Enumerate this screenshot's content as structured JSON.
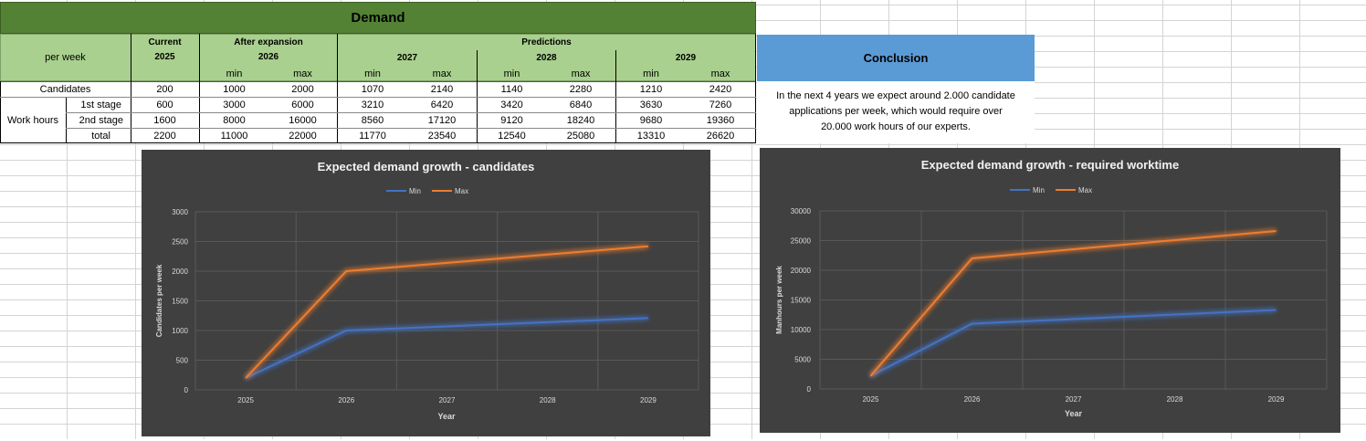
{
  "sheet": {
    "title": "Demand",
    "header": {
      "per_week": "per week",
      "current_label": "Current",
      "current_year": "2025",
      "expansion_label": "After expansion",
      "expansion_year": "2026",
      "predictions_label": "Predictions",
      "years": [
        "2027",
        "2028",
        "2029"
      ],
      "min": "min",
      "max": "max"
    },
    "rows": {
      "candidates_label": "Candidates",
      "work_hours_label": "Work hours",
      "stage1_label": "1st stage",
      "stage2_label": "2nd stage",
      "total_label": "total",
      "candidates": [
        "200",
        "1000",
        "2000",
        "1070",
        "2140",
        "1140",
        "2280",
        "1210",
        "2420"
      ],
      "stage1": [
        "600",
        "3000",
        "6000",
        "3210",
        "6420",
        "3420",
        "6840",
        "3630",
        "7260"
      ],
      "stage2": [
        "1600",
        "8000",
        "16000",
        "8560",
        "17120",
        "9120",
        "18240",
        "9680",
        "19360"
      ],
      "total": [
        "2200",
        "11000",
        "22000",
        "11770",
        "23540",
        "12540",
        "25080",
        "13310",
        "26620"
      ]
    }
  },
  "conclusion": {
    "title": "Conclusion",
    "line1": "In the next 4 years we expect around 2.000 candidate",
    "line2": "applications per week, which would require over",
    "line3": "20.000 work hours of our experts."
  },
  "chart_data": [
    {
      "type": "line",
      "title": "Expected demand growth - candidates",
      "xlabel": "",
      "ylabel": "Candidates per week",
      "x": [
        "2025",
        "2026",
        "2027",
        "2028",
        "2029"
      ],
      "ylim": [
        0,
        3000
      ],
      "yticks": [
        0,
        500,
        1000,
        1500,
        2000,
        2500,
        3000
      ],
      "ytick_labels": [
        "0",
        "500",
        "1000",
        "1500",
        "2000",
        "2500",
        "3000"
      ],
      "legend": "top",
      "grid": true,
      "series": [
        {
          "name": "Min",
          "color": "#4472c4",
          "values": [
            200,
            1000,
            1070,
            1140,
            1210
          ]
        },
        {
          "name": "Max",
          "color": "#ed7d31",
          "values": [
            200,
            2000,
            2140,
            2280,
            2420
          ]
        }
      ]
    },
    {
      "type": "line",
      "title": "Expected demand growth - required worktime",
      "xlabel": "Year",
      "ylabel": "Manhours per week",
      "x": [
        "2025",
        "2026",
        "2027",
        "2028",
        "2029"
      ],
      "ylim": [
        0,
        30000
      ],
      "yticks": [
        0,
        5000,
        10000,
        15000,
        20000,
        25000,
        30000
      ],
      "ytick_labels": [
        "0",
        "5000",
        "10000",
        "15000",
        "20000",
        "25000",
        "30000"
      ],
      "legend": "top",
      "grid": true,
      "series": [
        {
          "name": "Min",
          "color": "#4472c4",
          "values": [
            2200,
            11000,
            11770,
            12540,
            13310
          ]
        },
        {
          "name": "Max",
          "color": "#ed7d31",
          "values": [
            2200,
            22000,
            23540,
            25080,
            26620
          ]
        }
      ]
    }
  ]
}
